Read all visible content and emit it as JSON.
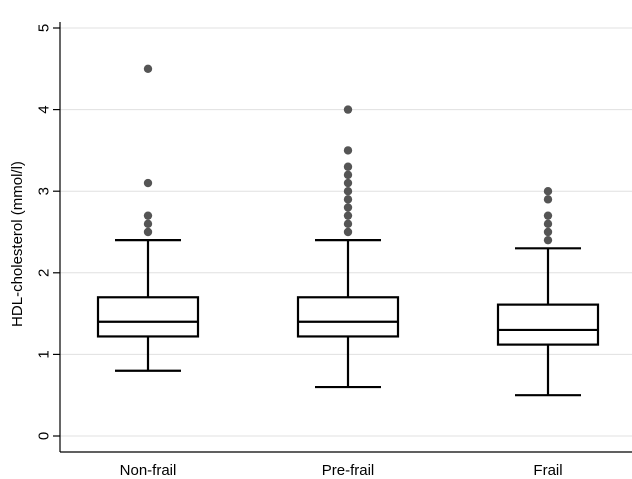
{
  "chart_data": {
    "type": "box",
    "ylabel": "HDL-cholesterol (mmol/l)",
    "xlabel": "",
    "title": "",
    "ylim": [
      0,
      5
    ],
    "yticks": [
      0,
      1,
      2,
      3,
      4,
      5
    ],
    "grid": true,
    "categories": [
      "Non-frail",
      "Pre-frail",
      "Frail"
    ],
    "boxes": [
      {
        "category": "Non-frail",
        "whisker_low": 0.8,
        "q1": 1.22,
        "median": 1.4,
        "q3": 1.7,
        "whisker_high": 2.4,
        "outliers": [
          2.5,
          2.6,
          2.7,
          3.1,
          4.5
        ]
      },
      {
        "category": "Pre-frail",
        "whisker_low": 0.6,
        "q1": 1.22,
        "median": 1.4,
        "q3": 1.7,
        "whisker_high": 2.4,
        "outliers": [
          2.5,
          2.6,
          2.7,
          2.8,
          2.9,
          3.0,
          3.1,
          3.2,
          3.3,
          3.5,
          4.0
        ]
      },
      {
        "category": "Frail",
        "whisker_low": 0.5,
        "q1": 1.12,
        "median": 1.3,
        "q3": 1.61,
        "whisker_high": 2.3,
        "outliers": [
          2.4,
          2.5,
          2.6,
          2.7,
          2.9,
          3.0
        ]
      }
    ],
    "colors": {
      "box": "#000000",
      "outlier": "#555555",
      "grid": "#e0e0e0",
      "axis": "#000000"
    }
  }
}
